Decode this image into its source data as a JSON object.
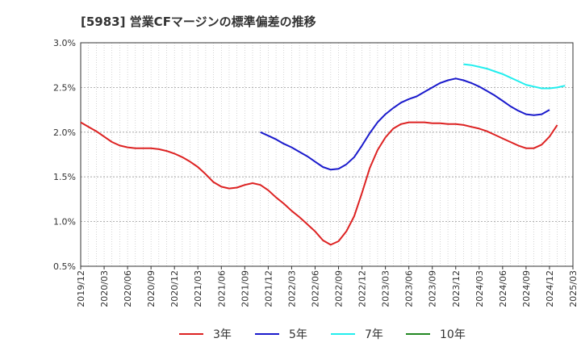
{
  "chart_data": {
    "type": "line",
    "title": "[5983]  営業CFマージンの標準偏差の推移",
    "xlabel": "",
    "ylabel": "",
    "ylim": [
      0.5,
      3.0
    ],
    "yticks": [
      0.5,
      1.0,
      1.5,
      2.0,
      2.5,
      3.0
    ],
    "ytick_labels": [
      "0.5%",
      "1.0%",
      "1.5%",
      "2.0%",
      "2.5%",
      "3.0%"
    ],
    "xticks": [
      "2019/12",
      "2020/03",
      "2020/06",
      "2020/09",
      "2020/12",
      "2021/03",
      "2021/06",
      "2021/09",
      "2021/12",
      "2022/03",
      "2022/06",
      "2022/09",
      "2022/12",
      "2023/03",
      "2023/06",
      "2023/09",
      "2023/12",
      "2024/03",
      "2024/06",
      "2024/09",
      "2024/12",
      "2025/03"
    ],
    "grid": true,
    "legend_position": "bottom",
    "series": [
      {
        "name": "3年",
        "color": "#dd2222",
        "points": [
          [
            "2019/12",
            2.11
          ],
          [
            "2020/01",
            2.06
          ],
          [
            "2020/02",
            2.01
          ],
          [
            "2020/03",
            1.95
          ],
          [
            "2020/04",
            1.89
          ],
          [
            "2020/05",
            1.85
          ],
          [
            "2020/06",
            1.83
          ],
          [
            "2020/07",
            1.82
          ],
          [
            "2020/08",
            1.82
          ],
          [
            "2020/09",
            1.82
          ],
          [
            "2020/10",
            1.81
          ],
          [
            "2020/11",
            1.79
          ],
          [
            "2020/12",
            1.76
          ],
          [
            "2021/01",
            1.72
          ],
          [
            "2021/02",
            1.67
          ],
          [
            "2021/03",
            1.61
          ],
          [
            "2021/04",
            1.53
          ],
          [
            "2021/05",
            1.44
          ],
          [
            "2021/06",
            1.39
          ],
          [
            "2021/07",
            1.37
          ],
          [
            "2021/08",
            1.38
          ],
          [
            "2021/09",
            1.41
          ],
          [
            "2021/10",
            1.43
          ],
          [
            "2021/11",
            1.41
          ],
          [
            "2021/12",
            1.35
          ],
          [
            "2022/01",
            1.27
          ],
          [
            "2022/02",
            1.2
          ],
          [
            "2022/03",
            1.12
          ],
          [
            "2022/04",
            1.05
          ],
          [
            "2022/05",
            0.97
          ],
          [
            "2022/06",
            0.89
          ],
          [
            "2022/07",
            0.79
          ],
          [
            "2022/08",
            0.74
          ],
          [
            "2022/09",
            0.78
          ],
          [
            "2022/10",
            0.89
          ],
          [
            "2022/11",
            1.06
          ],
          [
            "2022/12",
            1.32
          ],
          [
            "2023/01",
            1.6
          ],
          [
            "2023/02",
            1.8
          ],
          [
            "2023/03",
            1.94
          ],
          [
            "2023/04",
            2.04
          ],
          [
            "2023/05",
            2.09
          ],
          [
            "2023/06",
            2.11
          ],
          [
            "2023/07",
            2.11
          ],
          [
            "2023/08",
            2.11
          ],
          [
            "2023/09",
            2.1
          ],
          [
            "2023/10",
            2.1
          ],
          [
            "2023/11",
            2.09
          ],
          [
            "2023/12",
            2.09
          ],
          [
            "2024/01",
            2.08
          ],
          [
            "2024/02",
            2.06
          ],
          [
            "2024/03",
            2.04
          ],
          [
            "2024/04",
            2.01
          ],
          [
            "2024/05",
            1.97
          ],
          [
            "2024/06",
            1.93
          ],
          [
            "2024/07",
            1.89
          ],
          [
            "2024/08",
            1.85
          ],
          [
            "2024/09",
            1.82
          ],
          [
            "2024/10",
            1.82
          ],
          [
            "2024/11",
            1.86
          ],
          [
            "2024/12",
            1.95
          ],
          [
            "2025/01",
            2.08
          ]
        ]
      },
      {
        "name": "5年",
        "color": "#1a1acc",
        "points": [
          [
            "2021/11",
            2.0
          ],
          [
            "2021/12",
            1.96
          ],
          [
            "2022/01",
            1.92
          ],
          [
            "2022/02",
            1.87
          ],
          [
            "2022/03",
            1.83
          ],
          [
            "2022/04",
            1.78
          ],
          [
            "2022/05",
            1.73
          ],
          [
            "2022/06",
            1.67
          ],
          [
            "2022/07",
            1.61
          ],
          [
            "2022/08",
            1.58
          ],
          [
            "2022/09",
            1.59
          ],
          [
            "2022/10",
            1.64
          ],
          [
            "2022/11",
            1.72
          ],
          [
            "2022/12",
            1.85
          ],
          [
            "2023/01",
            1.99
          ],
          [
            "2023/02",
            2.11
          ],
          [
            "2023/03",
            2.2
          ],
          [
            "2023/04",
            2.27
          ],
          [
            "2023/05",
            2.33
          ],
          [
            "2023/06",
            2.37
          ],
          [
            "2023/07",
            2.4
          ],
          [
            "2023/08",
            2.45
          ],
          [
            "2023/09",
            2.5
          ],
          [
            "2023/10",
            2.55
          ],
          [
            "2023/11",
            2.58
          ],
          [
            "2023/12",
            2.6
          ],
          [
            "2024/01",
            2.58
          ],
          [
            "2024/02",
            2.55
          ],
          [
            "2024/03",
            2.51
          ],
          [
            "2024/04",
            2.46
          ],
          [
            "2024/05",
            2.41
          ],
          [
            "2024/06",
            2.35
          ],
          [
            "2024/07",
            2.29
          ],
          [
            "2024/08",
            2.24
          ],
          [
            "2024/09",
            2.2
          ],
          [
            "2024/10",
            2.19
          ],
          [
            "2024/11",
            2.2
          ],
          [
            "2024/12",
            2.25
          ]
        ]
      },
      {
        "name": "7年",
        "color": "#22eeee",
        "points": [
          [
            "2024/01",
            2.76
          ],
          [
            "2024/02",
            2.75
          ],
          [
            "2024/03",
            2.73
          ],
          [
            "2024/04",
            2.71
          ],
          [
            "2024/05",
            2.68
          ],
          [
            "2024/06",
            2.65
          ],
          [
            "2024/07",
            2.61
          ],
          [
            "2024/08",
            2.57
          ],
          [
            "2024/09",
            2.53
          ],
          [
            "2024/10",
            2.51
          ],
          [
            "2024/11",
            2.49
          ],
          [
            "2024/12",
            2.49
          ],
          [
            "2025/01",
            2.5
          ],
          [
            "2025/02",
            2.52
          ]
        ]
      },
      {
        "name": "10年",
        "color": "#228822",
        "points": []
      }
    ]
  }
}
